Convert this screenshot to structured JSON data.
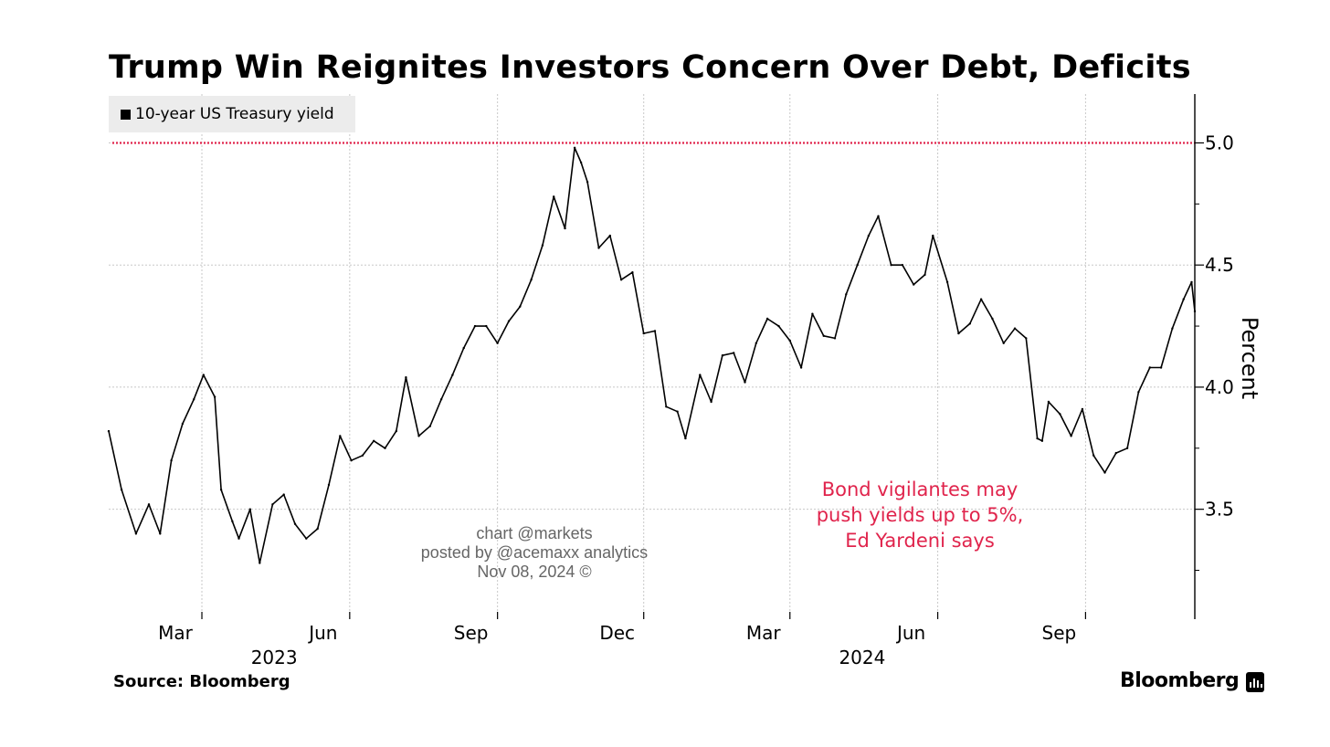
{
  "chart_data": {
    "type": "line",
    "title": "Trump Win Reignites Investors Concern Over Debt, Deficits",
    "ylabel": "Percent",
    "ylim": [
      3.05,
      5.2
    ],
    "y_ticks": [
      "3.5",
      "4.0",
      "4.5",
      "5.0"
    ],
    "x_ticks": [
      {
        "label": "Mar",
        "date": "2023-03-01"
      },
      {
        "label": "Jun",
        "date": "2023-06-01"
      },
      {
        "label": "Sep",
        "date": "2023-09-01"
      },
      {
        "label": "Dec",
        "date": "2023-12-01"
      },
      {
        "label": "Mar",
        "date": "2024-03-01"
      },
      {
        "label": "Jun",
        "date": "2024-06-01"
      },
      {
        "label": "Sep",
        "date": "2024-09-01"
      }
    ],
    "year_labels": [
      {
        "label": "2023",
        "date": "2023-04-15"
      },
      {
        "label": "2024",
        "date": "2024-04-15"
      }
    ],
    "xlim": [
      "2023-01-02",
      "2024-11-08"
    ],
    "grid": true,
    "legend_position": "top-left",
    "reference_line": {
      "y": 5.0,
      "color": "#e0244c",
      "style": "dotted"
    },
    "series": [
      {
        "name": "10-year US Treasury yield",
        "color": "#000000",
        "points": [
          [
            "2023-01-02",
            3.82
          ],
          [
            "2023-01-10",
            3.58
          ],
          [
            "2023-01-19",
            3.4
          ],
          [
            "2023-01-27",
            3.52
          ],
          [
            "2023-02-03",
            3.4
          ],
          [
            "2023-02-10",
            3.7
          ],
          [
            "2023-02-17",
            3.85
          ],
          [
            "2023-02-24",
            3.95
          ],
          [
            "2023-03-02",
            4.05
          ],
          [
            "2023-03-09",
            3.96
          ],
          [
            "2023-03-13",
            3.58
          ],
          [
            "2023-03-20",
            3.45
          ],
          [
            "2023-03-24",
            3.38
          ],
          [
            "2023-03-31",
            3.5
          ],
          [
            "2023-04-06",
            3.28
          ],
          [
            "2023-04-14",
            3.52
          ],
          [
            "2023-04-21",
            3.56
          ],
          [
            "2023-04-28",
            3.44
          ],
          [
            "2023-05-05",
            3.38
          ],
          [
            "2023-05-12",
            3.42
          ],
          [
            "2023-05-19",
            3.6
          ],
          [
            "2023-05-26",
            3.8
          ],
          [
            "2023-06-02",
            3.7
          ],
          [
            "2023-06-09",
            3.72
          ],
          [
            "2023-06-16",
            3.78
          ],
          [
            "2023-06-23",
            3.75
          ],
          [
            "2023-06-30",
            3.82
          ],
          [
            "2023-07-06",
            4.04
          ],
          [
            "2023-07-14",
            3.8
          ],
          [
            "2023-07-21",
            3.84
          ],
          [
            "2023-07-28",
            3.95
          ],
          [
            "2023-08-04",
            4.05
          ],
          [
            "2023-08-11",
            4.16
          ],
          [
            "2023-08-18",
            4.25
          ],
          [
            "2023-08-25",
            4.25
          ],
          [
            "2023-09-01",
            4.18
          ],
          [
            "2023-09-08",
            4.27
          ],
          [
            "2023-09-15",
            4.33
          ],
          [
            "2023-09-22",
            4.44
          ],
          [
            "2023-09-29",
            4.58
          ],
          [
            "2023-10-06",
            4.78
          ],
          [
            "2023-10-13",
            4.65
          ],
          [
            "2023-10-19",
            4.98
          ],
          [
            "2023-10-23",
            4.92
          ],
          [
            "2023-10-27",
            4.84
          ],
          [
            "2023-11-03",
            4.57
          ],
          [
            "2023-11-10",
            4.62
          ],
          [
            "2023-11-17",
            4.44
          ],
          [
            "2023-11-24",
            4.47
          ],
          [
            "2023-12-01",
            4.22
          ],
          [
            "2023-12-08",
            4.23
          ],
          [
            "2023-12-15",
            3.92
          ],
          [
            "2023-12-22",
            3.9
          ],
          [
            "2023-12-27",
            3.79
          ],
          [
            "2024-01-05",
            4.05
          ],
          [
            "2024-01-12",
            3.94
          ],
          [
            "2024-01-19",
            4.13
          ],
          [
            "2024-01-26",
            4.14
          ],
          [
            "2024-02-02",
            4.02
          ],
          [
            "2024-02-09",
            4.18
          ],
          [
            "2024-02-16",
            4.28
          ],
          [
            "2024-02-23",
            4.25
          ],
          [
            "2024-03-01",
            4.19
          ],
          [
            "2024-03-08",
            4.08
          ],
          [
            "2024-03-15",
            4.3
          ],
          [
            "2024-03-22",
            4.21
          ],
          [
            "2024-03-29",
            4.2
          ],
          [
            "2024-04-05",
            4.38
          ],
          [
            "2024-04-12",
            4.5
          ],
          [
            "2024-04-19",
            4.62
          ],
          [
            "2024-04-25",
            4.7
          ],
          [
            "2024-05-03",
            4.5
          ],
          [
            "2024-05-10",
            4.5
          ],
          [
            "2024-05-17",
            4.42
          ],
          [
            "2024-05-24",
            4.46
          ],
          [
            "2024-05-29",
            4.62
          ],
          [
            "2024-06-07",
            4.43
          ],
          [
            "2024-06-14",
            4.22
          ],
          [
            "2024-06-21",
            4.26
          ],
          [
            "2024-06-28",
            4.36
          ],
          [
            "2024-07-05",
            4.28
          ],
          [
            "2024-07-12",
            4.18
          ],
          [
            "2024-07-19",
            4.24
          ],
          [
            "2024-07-26",
            4.2
          ],
          [
            "2024-08-02",
            3.79
          ],
          [
            "2024-08-05",
            3.78
          ],
          [
            "2024-08-09",
            3.94
          ],
          [
            "2024-08-16",
            3.89
          ],
          [
            "2024-08-23",
            3.8
          ],
          [
            "2024-08-30",
            3.91
          ],
          [
            "2024-09-06",
            3.72
          ],
          [
            "2024-09-13",
            3.65
          ],
          [
            "2024-09-20",
            3.73
          ],
          [
            "2024-09-27",
            3.75
          ],
          [
            "2024-10-04",
            3.98
          ],
          [
            "2024-10-11",
            4.08
          ],
          [
            "2024-10-18",
            4.08
          ],
          [
            "2024-10-25",
            4.24
          ],
          [
            "2024-11-01",
            4.36
          ],
          [
            "2024-11-06",
            4.43
          ],
          [
            "2024-11-08",
            4.31
          ]
        ]
      }
    ]
  },
  "legend": {
    "label": "10-year US Treasury yield"
  },
  "source": "Source: Bloomberg",
  "brand": "Bloomberg",
  "watermark": [
    "chart @markets",
    "posted by @acemaxx analytics",
    "Nov 08, 2024 ©"
  ],
  "annotation": [
    "Bond vigilantes may",
    "push yields up to 5%,",
    "Ed Yardeni says"
  ],
  "colors": {
    "line": "#000000",
    "reference": "#e0244c",
    "grid": "#c8c8c8",
    "annotation": "#e0244c",
    "legend_bg": "#ececec"
  }
}
